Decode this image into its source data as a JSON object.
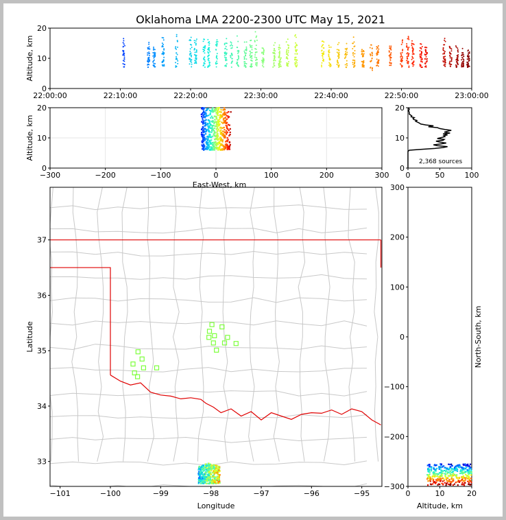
{
  "figure": {
    "title": "Oklahoma LMA 2200-2300 UTC May 15, 2021",
    "source_count_label": "2,368 sources"
  },
  "colors": {
    "background": "#c0c0c0",
    "state_border": "#e00000",
    "county_lines": "#c8c8c8",
    "station_marker": "#7dff3c",
    "colormap": [
      "#00007f",
      "#0010ff",
      "#0090ff",
      "#10f0e0",
      "#80ff7a",
      "#f0ff10",
      "#ff9000",
      "#ff1500",
      "#7f0000"
    ]
  },
  "chart_data": [
    {
      "id": "time-altitude",
      "type": "scatter",
      "ylabel": "Altitude, km",
      "xlim": [
        "22:00:00",
        "23:00:00"
      ],
      "ylim": [
        0,
        20
      ],
      "xticks": [
        "22:00:00",
        "22:10:00",
        "22:20:00",
        "22:30:00",
        "22:40:00",
        "22:50:00",
        "23:00:00"
      ],
      "yticks": [
        0,
        10,
        20
      ],
      "note": "Source points colored by time; clustered in vertical columns",
      "series": [
        {
          "x_minutes_after_22": [
            10.5,
            14.0,
            14.8,
            16.1,
            18.0,
            20.0,
            20.7,
            21.9,
            22.6,
            23.7,
            25.0,
            25.8,
            26.7,
            27.8,
            28.6,
            29.3,
            30.3,
            31.9,
            32.7,
            33.8,
            35.0,
            38.8,
            39.8,
            41.0,
            42.1,
            43.2,
            44.5,
            45.7,
            46.6,
            48.4,
            50.0,
            50.9,
            51.6,
            52.8,
            53.5,
            56.1,
            57.0,
            57.9,
            58.7,
            59.5
          ],
          "y_range_km": [
            [
              7,
              18
            ],
            [
              7,
              18
            ],
            [
              7,
              15
            ],
            [
              7,
              18
            ],
            [
              7,
              19
            ],
            [
              7,
              19
            ],
            [
              7,
              17
            ],
            [
              7,
              18
            ],
            [
              7,
              19
            ],
            [
              7,
              19
            ],
            [
              7,
              17
            ],
            [
              7,
              18
            ],
            [
              7,
              18
            ],
            [
              7,
              17
            ],
            [
              7,
              18
            ],
            [
              7,
              19
            ],
            [
              7,
              15
            ],
            [
              7,
              16
            ],
            [
              7,
              15
            ],
            [
              7,
              17
            ],
            [
              7,
              19
            ],
            [
              7,
              17
            ],
            [
              7,
              16
            ],
            [
              7,
              17
            ],
            [
              7,
              16
            ],
            [
              7,
              18
            ],
            [
              7,
              15
            ],
            [
              6,
              16
            ],
            [
              7,
              15
            ],
            [
              7,
              16
            ],
            [
              7,
              17
            ],
            [
              7,
              18
            ],
            [
              7,
              17
            ],
            [
              7,
              17
            ],
            [
              7,
              16
            ],
            [
              7,
              19
            ],
            [
              7,
              16
            ],
            [
              7,
              15
            ],
            [
              7,
              14
            ],
            [
              7,
              13
            ]
          ]
        }
      ]
    },
    {
      "id": "ew-altitude",
      "type": "scatter",
      "xlabel": "East-West, km",
      "ylabel": "Altitude, km",
      "xlim": [
        -300,
        300
      ],
      "ylim": [
        0,
        20
      ],
      "xticks": [
        -300,
        -200,
        -100,
        0,
        100,
        200,
        300
      ],
      "yticks": [
        0,
        10,
        20
      ],
      "cluster": {
        "x_range": [
          -35,
          30
        ],
        "alt_range": [
          6,
          20
        ]
      }
    },
    {
      "id": "altitude-histogram",
      "type": "line",
      "xlim": [
        0,
        100
      ],
      "ylim": [
        0,
        20
      ],
      "xticks": [
        0,
        50,
        100
      ],
      "yticks": [
        0,
        10,
        20
      ],
      "profile": [
        [
          0,
          0
        ],
        [
          0,
          5.5
        ],
        [
          2,
          5.9
        ],
        [
          20,
          6.2
        ],
        [
          42,
          6.5
        ],
        [
          55,
          6.8
        ],
        [
          62,
          7.1
        ],
        [
          46,
          7.4
        ],
        [
          40,
          7.7
        ],
        [
          52,
          8.0
        ],
        [
          60,
          8.3
        ],
        [
          50,
          8.6
        ],
        [
          44,
          8.9
        ],
        [
          55,
          9.2
        ],
        [
          57,
          9.5
        ],
        [
          46,
          9.8
        ],
        [
          52,
          10.1
        ],
        [
          58,
          10.4
        ],
        [
          56,
          10.7
        ],
        [
          62,
          11.0
        ],
        [
          55,
          11.3
        ],
        [
          66,
          11.6
        ],
        [
          57,
          11.9
        ],
        [
          62,
          12.2
        ],
        [
          68,
          12.5
        ],
        [
          58,
          12.8
        ],
        [
          50,
          13.1
        ],
        [
          46,
          13.4
        ],
        [
          32,
          13.7
        ],
        [
          40,
          14.0
        ],
        [
          28,
          14.3
        ],
        [
          20,
          14.6
        ],
        [
          18,
          14.9
        ],
        [
          15,
          15.2
        ],
        [
          12,
          15.5
        ],
        [
          14,
          15.8
        ],
        [
          9,
          16.1
        ],
        [
          8,
          16.4
        ],
        [
          10,
          16.7
        ],
        [
          5,
          17.0
        ],
        [
          6,
          17.3
        ],
        [
          4,
          17.6
        ],
        [
          2,
          17.9
        ],
        [
          2,
          18.5
        ],
        [
          1,
          19.0
        ],
        [
          2,
          19.5
        ],
        [
          1,
          20.0
        ]
      ]
    },
    {
      "id": "plan-view",
      "type": "scatter",
      "xlabel": "Longitude",
      "ylabel": "Latitude",
      "xlim": [
        -101.2,
        -94.6
      ],
      "ylim": [
        32.55,
        37.95
      ],
      "xticks": [
        -101,
        -100,
        -99,
        -98,
        -97,
        -96,
        -95
      ],
      "yticks": [
        33,
        34,
        35,
        36,
        37
      ],
      "stations_lonlat": [
        [
          -97.98,
          35.47
        ],
        [
          -97.78,
          35.43
        ],
        [
          -98.03,
          35.35
        ],
        [
          -97.93,
          35.27
        ],
        [
          -98.04,
          35.24
        ],
        [
          -97.67,
          35.24
        ],
        [
          -97.73,
          35.14
        ],
        [
          -97.5,
          35.13
        ],
        [
          -97.95,
          35.14
        ],
        [
          -97.89,
          35.01
        ],
        [
          -99.45,
          34.98
        ],
        [
          -99.37,
          34.85
        ],
        [
          -99.55,
          34.76
        ],
        [
          -99.34,
          34.69
        ],
        [
          -99.08,
          34.69
        ],
        [
          -99.52,
          34.6
        ],
        [
          -99.46,
          34.53
        ]
      ],
      "cluster": {
        "lon_range": [
          -98.25,
          -97.82
        ],
        "lat_range": [
          32.6,
          32.98
        ]
      }
    },
    {
      "id": "altitude-ns",
      "type": "scatter",
      "xlabel": "Altitude, km",
      "ylabel": "North-South, km",
      "xlim": [
        0,
        20
      ],
      "ylim": [
        -300,
        300
      ],
      "xticks": [
        0,
        10,
        20
      ],
      "yticks": [
        -300,
        -200,
        -100,
        0,
        100,
        200,
        300
      ],
      "cluster": {
        "alt_range": [
          6,
          20
        ],
        "ns_range": [
          -298,
          -255
        ]
      }
    }
  ]
}
